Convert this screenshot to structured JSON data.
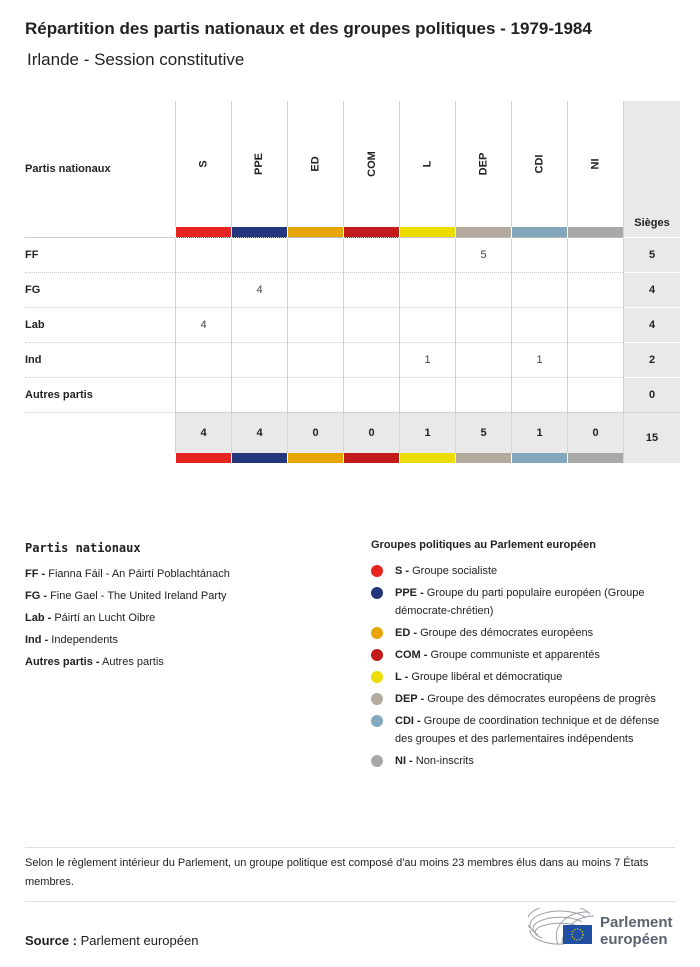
{
  "title": "Répartition des partis nationaux et des groupes politiques - 1979-1984",
  "subtitle": "Irlande - Session constitutive",
  "table": {
    "corner_label": "Partis nationaux",
    "seats_label": "Sièges",
    "groups": [
      {
        "code": "S",
        "color": "#e52421"
      },
      {
        "code": "PPE",
        "color": "#25377c"
      },
      {
        "code": "ED",
        "color": "#e7a500"
      },
      {
        "code": "COM",
        "color": "#c31b1b"
      },
      {
        "code": "L",
        "color": "#ecdc00"
      },
      {
        "code": "DEP",
        "color": "#b3a99c"
      },
      {
        "code": "CDI",
        "color": "#83a8bd"
      },
      {
        "code": "NI",
        "color": "#a8a8a8"
      }
    ],
    "rows": [
      {
        "party": "FF",
        "values": [
          "",
          "",
          "",
          "",
          "",
          "5",
          "",
          ""
        ],
        "seats": "5"
      },
      {
        "party": "FG",
        "values": [
          "",
          "4",
          "",
          "",
          "",
          "",
          "",
          ""
        ],
        "seats": "4"
      },
      {
        "party": "Lab",
        "values": [
          "4",
          "",
          "",
          "",
          "",
          "",
          "",
          ""
        ],
        "seats": "4"
      },
      {
        "party": "Ind",
        "values": [
          "",
          "",
          "",
          "",
          "1",
          "",
          "1",
          ""
        ],
        "seats": "2"
      },
      {
        "party": "Autres partis",
        "values": [
          "",
          "",
          "",
          "",
          "",
          "",
          "",
          ""
        ],
        "seats": "0"
      }
    ],
    "totals": [
      "4",
      "4",
      "0",
      "0",
      "1",
      "5",
      "1",
      "0"
    ],
    "total_seats": "15"
  },
  "legend_parties": {
    "heading": "Partis nationaux",
    "items": [
      {
        "code": "FF -",
        "name": "Fianna Fáil - An Páirtí Poblachtánach"
      },
      {
        "code": "FG -",
        "name": "Fine Gael - The United Ireland Party"
      },
      {
        "code": "Lab -",
        "name": "Páirtí an Lucht Oibre"
      },
      {
        "code": "Ind -",
        "name": "Independents"
      },
      {
        "code": "Autres partis -",
        "name": "Autres partis"
      }
    ]
  },
  "legend_groups": {
    "heading": "Groupes politiques au Parlement européen",
    "items": [
      {
        "code": "S -",
        "name": "Groupe socialiste"
      },
      {
        "code": "PPE -",
        "name": "Groupe du parti populaire européen (Groupe démocrate-chrétien)"
      },
      {
        "code": "ED -",
        "name": "Groupe des démocrates européens"
      },
      {
        "code": "COM -",
        "name": "Groupe communiste et apparentés"
      },
      {
        "code": "L -",
        "name": "Groupe libéral et démocratique"
      },
      {
        "code": "DEP -",
        "name": "Groupe des démocrates européens de progrès"
      },
      {
        "code": "CDI -",
        "name": "Groupe de coordination technique et de défense des groupes et des parlementaires indépendents"
      },
      {
        "code": "NI -",
        "name": "Non-inscrits"
      }
    ]
  },
  "note": "Selon le règlement intérieur du Parlement, un groupe politique est composé d'au moins 23 membres élus dans au moins 7 États membres.",
  "source": {
    "label": "Source :",
    "value": "Parlement européen"
  },
  "logo": {
    "text": "Parlement européen",
    "line1": "Parlement",
    "line2": "européen"
  }
}
